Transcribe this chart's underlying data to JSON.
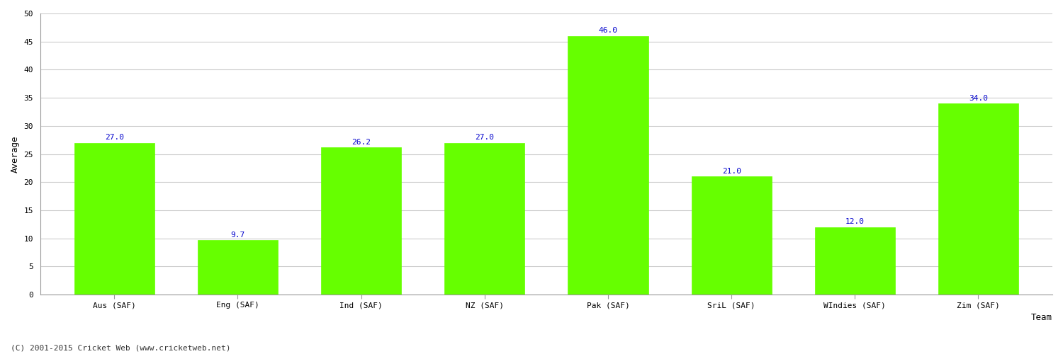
{
  "show_title": false,
  "categories": [
    "Aus (SAF)",
    "Eng (SAF)",
    "Ind (SAF)",
    "NZ (SAF)",
    "Pak (SAF)",
    "SriL (SAF)",
    "WIndies (SAF)",
    "Zim (SAF)"
  ],
  "values": [
    27.0,
    9.7,
    26.2,
    27.0,
    46.0,
    21.0,
    12.0,
    34.0
  ],
  "bar_color": "#66ff00",
  "bar_edge_color": "#66ff00",
  "label_color": "#0000cc",
  "xlabel": "Team",
  "ylabel": "Average",
  "ylim": [
    0,
    50
  ],
  "yticks": [
    0,
    5,
    10,
    15,
    20,
    25,
    30,
    35,
    40,
    45,
    50
  ],
  "grid_color": "#cccccc",
  "bg_color": "#ffffff",
  "fig_bg_color": "#ffffff",
  "footnote": "(C) 2001-2015 Cricket Web (www.cricketweb.net)",
  "axis_label_fontsize": 9,
  "tick_fontsize": 8,
  "value_label_fontsize": 8,
  "footnote_fontsize": 8,
  "bar_width": 0.65
}
